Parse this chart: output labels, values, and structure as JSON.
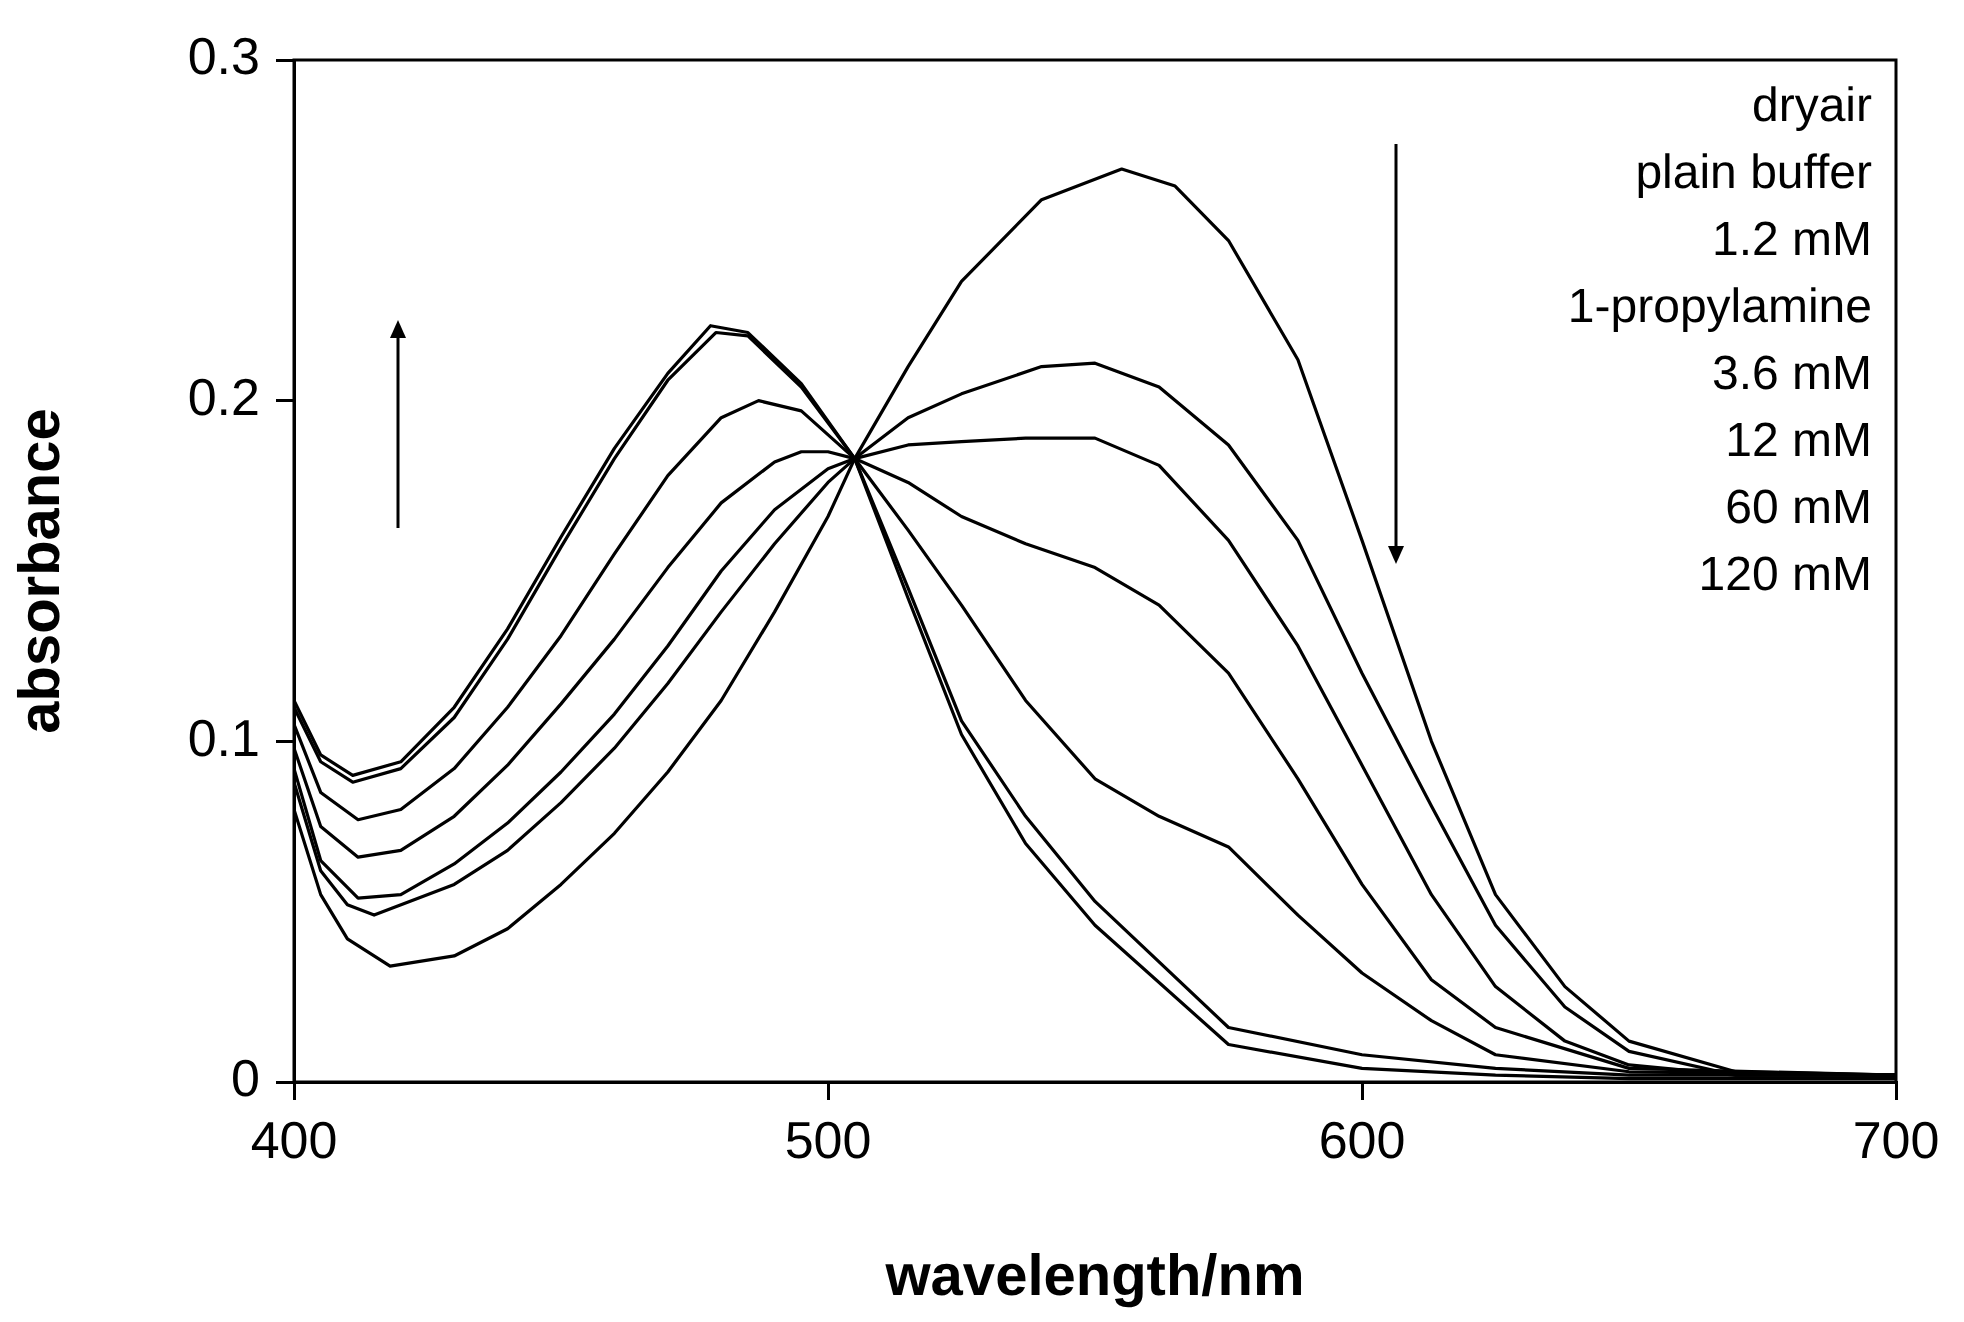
{
  "chart_data": {
    "type": "line",
    "xlabel": "wavelength/nm",
    "ylabel": "absorbance",
    "xlim": [
      400,
      700
    ],
    "xticks": [
      400,
      500,
      600,
      700
    ],
    "ylim": [
      0,
      0.3
    ],
    "yticks": [
      0,
      0.1,
      0.2,
      0.3
    ],
    "grid": false,
    "legend": false,
    "marker": "none",
    "line_style": "solid",
    "annotations": [
      "dryair",
      "plain buffer",
      "1.2 mM",
      "1-propylamine",
      "3.6 mM",
      "12 mM",
      "60 mM",
      "120 mM"
    ],
    "series": [
      {
        "color": "#000000",
        "x": [
          400,
          405,
          410,
          418,
          430,
          440,
          450,
          460,
          470,
          480,
          490,
          500,
          505,
          515,
          525,
          540,
          555,
          565,
          575,
          588,
          600,
          613,
          625,
          638,
          650,
          670,
          700
        ],
        "values": [
          0.08,
          0.055,
          0.042,
          0.034,
          0.037,
          0.045,
          0.058,
          0.073,
          0.091,
          0.112,
          0.138,
          0.166,
          0.183,
          0.21,
          0.235,
          0.259,
          0.268,
          0.263,
          0.247,
          0.212,
          0.159,
          0.1,
          0.055,
          0.028,
          0.012,
          0.003,
          0.002
        ]
      },
      {
        "color": "#000000",
        "x": [
          400,
          405,
          410,
          415,
          430,
          440,
          450,
          460,
          470,
          480,
          490,
          500,
          505,
          515,
          525,
          540,
          550,
          562,
          575,
          588,
          600,
          613,
          625,
          638,
          650,
          670,
          700
        ],
        "values": [
          0.088,
          0.062,
          0.052,
          0.049,
          0.058,
          0.068,
          0.082,
          0.098,
          0.117,
          0.138,
          0.158,
          0.176,
          0.183,
          0.195,
          0.202,
          0.21,
          0.211,
          0.204,
          0.187,
          0.159,
          0.12,
          0.081,
          0.046,
          0.022,
          0.009,
          0.002,
          0.002
        ]
      },
      {
        "color": "#000000",
        "x": [
          400,
          405,
          412,
          420,
          430,
          440,
          450,
          460,
          470,
          480,
          490,
          500,
          505,
          515,
          525,
          537,
          550,
          562,
          575,
          588,
          600,
          613,
          625,
          638,
          650,
          670,
          700
        ],
        "values": [
          0.092,
          0.065,
          0.054,
          0.055,
          0.064,
          0.076,
          0.091,
          0.108,
          0.128,
          0.15,
          0.168,
          0.18,
          0.183,
          0.187,
          0.188,
          0.189,
          0.189,
          0.181,
          0.159,
          0.128,
          0.093,
          0.055,
          0.028,
          0.012,
          0.005,
          0.002,
          0.002
        ]
      },
      {
        "color": "#000000",
        "x": [
          400,
          405,
          412,
          420,
          430,
          440,
          450,
          460,
          470,
          480,
          490,
          495,
          500,
          505,
          515,
          525,
          537,
          550,
          562,
          575,
          588,
          600,
          613,
          625,
          650,
          700
        ],
        "values": [
          0.098,
          0.075,
          0.066,
          0.068,
          0.078,
          0.093,
          0.111,
          0.13,
          0.151,
          0.17,
          0.182,
          0.185,
          0.185,
          0.183,
          0.176,
          0.166,
          0.158,
          0.151,
          0.14,
          0.12,
          0.089,
          0.058,
          0.03,
          0.016,
          0.004,
          0.002
        ]
      },
      {
        "color": "#000000",
        "x": [
          400,
          405,
          412,
          420,
          430,
          440,
          450,
          460,
          470,
          480,
          487,
          495,
          505,
          515,
          525,
          537,
          550,
          562,
          575,
          588,
          600,
          613,
          625,
          650,
          700
        ],
        "values": [
          0.105,
          0.085,
          0.077,
          0.08,
          0.092,
          0.11,
          0.131,
          0.155,
          0.178,
          0.195,
          0.2,
          0.197,
          0.183,
          0.162,
          0.14,
          0.112,
          0.089,
          0.078,
          0.069,
          0.049,
          0.032,
          0.018,
          0.008,
          0.003,
          0.002
        ]
      },
      {
        "color": "#000000",
        "x": [
          400,
          405,
          411,
          420,
          430,
          440,
          450,
          460,
          470,
          478,
          485,
          495,
          505,
          515,
          525,
          537,
          550,
          575,
          600,
          625,
          650,
          700
        ],
        "values": [
          0.112,
          0.096,
          0.09,
          0.094,
          0.11,
          0.133,
          0.16,
          0.186,
          0.208,
          0.222,
          0.22,
          0.205,
          0.183,
          0.145,
          0.106,
          0.078,
          0.053,
          0.016,
          0.008,
          0.004,
          0.002,
          0.002
        ]
      },
      {
        "color": "#000000",
        "x": [
          400,
          405,
          411,
          420,
          430,
          440,
          450,
          460,
          470,
          479,
          485,
          495,
          505,
          515,
          525,
          537,
          550,
          575,
          600,
          625,
          650,
          700
        ],
        "values": [
          0.11,
          0.094,
          0.088,
          0.092,
          0.107,
          0.13,
          0.157,
          0.183,
          0.206,
          0.22,
          0.219,
          0.204,
          0.183,
          0.142,
          0.102,
          0.07,
          0.046,
          0.011,
          0.004,
          0.002,
          0.001,
          0.001
        ]
      }
    ]
  }
}
